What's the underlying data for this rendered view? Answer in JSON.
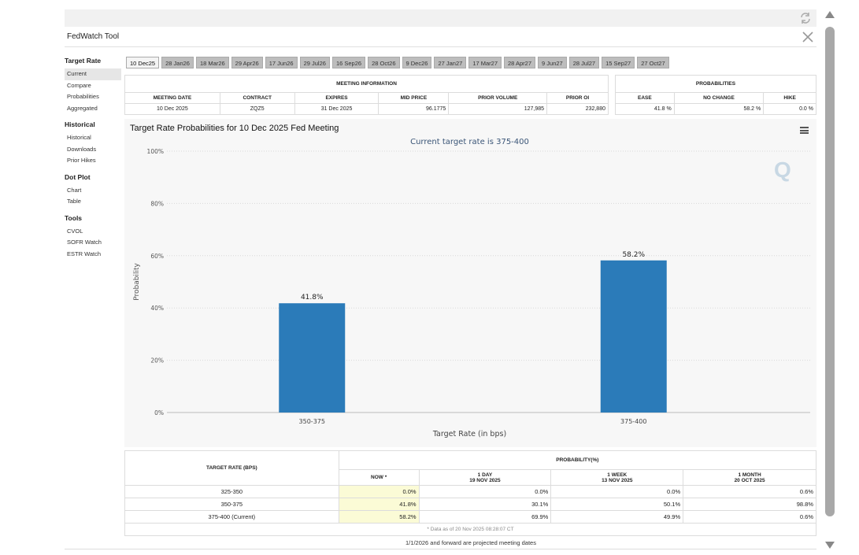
{
  "app": {
    "title": "FedWatch Tool"
  },
  "sidebar": {
    "groups": [
      {
        "heading": "Target Rate",
        "items": [
          "Current",
          "Compare",
          "Probabilities",
          "Aggregated"
        ]
      },
      {
        "heading": "Historical",
        "items": [
          "Historical",
          "Downloads",
          "Prior Hikes"
        ]
      },
      {
        "heading": "Dot Plot",
        "items": [
          "Chart",
          "Table"
        ]
      },
      {
        "heading": "Tools",
        "items": [
          "CVOL",
          "SOFR Watch",
          "ESTR Watch"
        ]
      }
    ]
  },
  "tabs": [
    "10 Dec25",
    "28 Jan26",
    "18 Mar26",
    "29 Apr26",
    "17 Jun26",
    "29 Jul26",
    "16 Sep26",
    "28 Oct26",
    "9 Dec26",
    "27 Jan27",
    "17 Mar27",
    "28 Apr27",
    "9 Jun27",
    "28 Jul27",
    "15 Sep27",
    "27 Oct27"
  ],
  "meeting_info": {
    "group_label": "MEETING INFORMATION",
    "headers": [
      "MEETING DATE",
      "CONTRACT",
      "EXPIRES",
      "MID PRICE",
      "PRIOR VOLUME",
      "PRIOR OI"
    ],
    "row": [
      "10 Dec 2025",
      "ZQZ5",
      "31 Dec 2025",
      "96.1775",
      "127,985",
      "232,880"
    ]
  },
  "probabilities": {
    "group_label": "PROBABILITIES",
    "headers": [
      "EASE",
      "NO CHANGE",
      "HIKE"
    ],
    "row": [
      "41.8 %",
      "58.2 %",
      "0.0 %"
    ]
  },
  "chart_data": {
    "type": "bar",
    "title": "Target Rate Probabilities for 10 Dec 2025 Fed Meeting",
    "subtitle": "Current target rate is 375-400",
    "categories": [
      "350-375",
      "375-400"
    ],
    "values": [
      41.8,
      58.2
    ],
    "data_labels": [
      "41.8%",
      "58.2%"
    ],
    "xlabel": "Target Rate (in bps)",
    "ylabel": "Probability",
    "ylim": [
      0,
      100
    ],
    "yticks": [
      "0%",
      "20%",
      "40%",
      "60%",
      "80%",
      "100%"
    ],
    "color": "#2b7bb9",
    "grid": true
  },
  "lower_table": {
    "target_header": "TARGET RATE (BPS)",
    "prob_header": "PROBABILITY(%)",
    "col_headers": [
      {
        "line1": "NOW *",
        "line2": ""
      },
      {
        "line1": "1 DAY",
        "line2": "19 NOV 2025"
      },
      {
        "line1": "1 WEEK",
        "line2": "13 NOV 2025"
      },
      {
        "line1": "1 MONTH",
        "line2": "20 OCT 2025"
      }
    ],
    "rows": [
      {
        "rate": "325-350",
        "now": "0.0%",
        "day": "0.0%",
        "week": "0.0%",
        "month": "0.6%"
      },
      {
        "rate": "350-375",
        "now": "41.8%",
        "day": "30.1%",
        "week": "50.1%",
        "month": "98.8%"
      },
      {
        "rate": "375-400 (Current)",
        "now": "58.2%",
        "day": "69.9%",
        "week": "49.9%",
        "month": "0.6%"
      }
    ],
    "note": "* Data as of 20 Nov 2025 08:28:07 CT"
  },
  "footer": "1/1/2026 and forward are projected meeting dates"
}
